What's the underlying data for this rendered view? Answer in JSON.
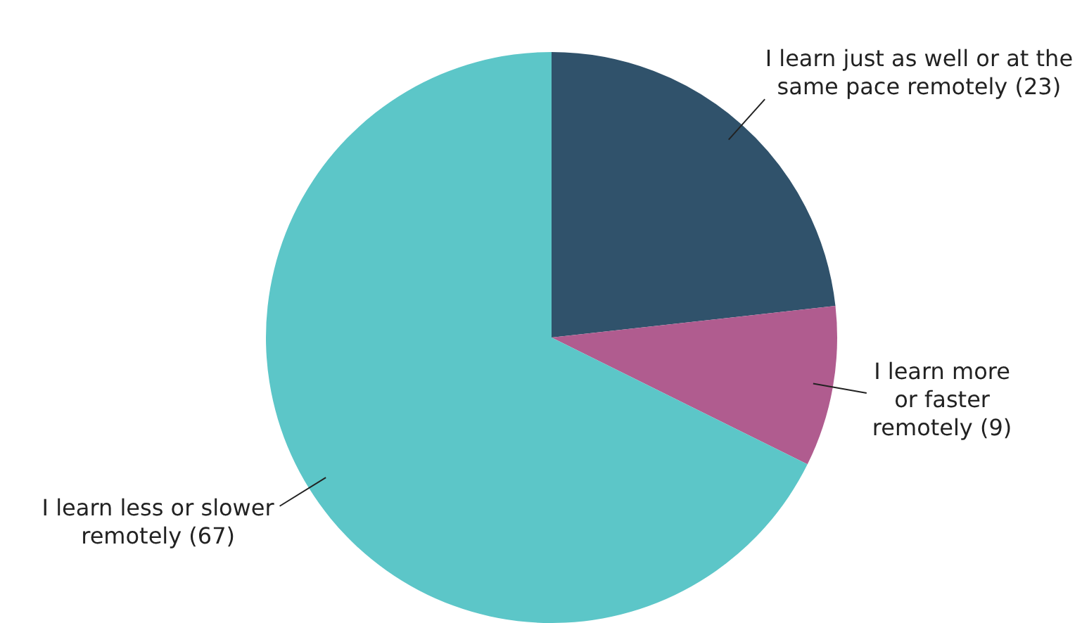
{
  "chart_data": {
    "type": "pie",
    "categories": [
      "I learn just as well or at the same pace remotely (23)",
      "I learn more or faster remotely (9)",
      "I learn less or slower remotely (67)"
    ],
    "values": [
      23,
      9,
      67
    ],
    "colors": [
      "#30526b",
      "#b05c8f",
      "#5cc6c8"
    ],
    "legend": false
  }
}
